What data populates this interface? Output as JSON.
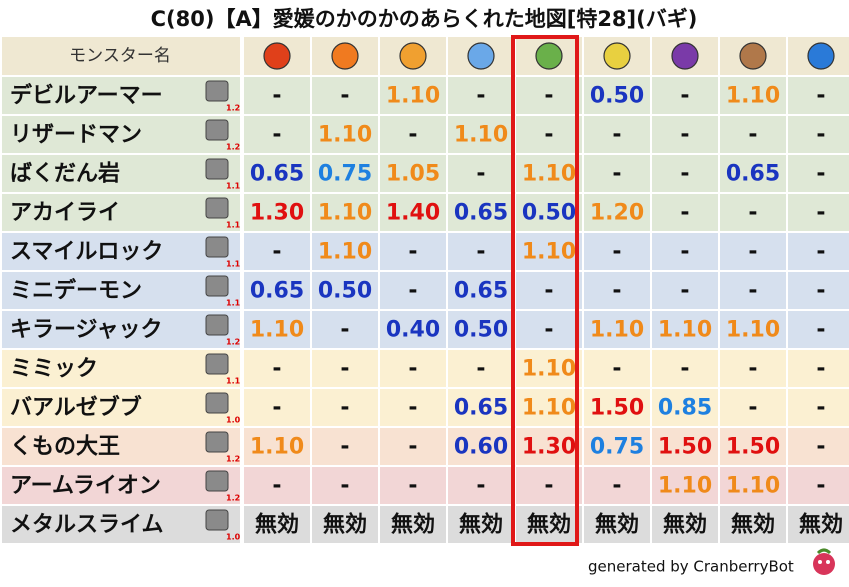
{
  "title": "C(80)【A】愛媛のかのかのあらくれた地図[特28](バギ)",
  "table": {
    "header": "モンスター名",
    "rows": [
      {
        "name": "デビルアーマー",
        "level": "1.2",
        "values": [
          "-",
          "-",
          "1.10",
          "-",
          "-",
          "0.50",
          "-",
          "1.10",
          "-"
        ]
      },
      {
        "name": "リザードマン",
        "level": "1.2",
        "values": [
          "-",
          "1.10",
          "-",
          "1.10",
          "-",
          "-",
          "-",
          "-",
          "-"
        ]
      },
      {
        "name": "ばくだん岩",
        "level": "1.1",
        "values": [
          "0.65",
          "0.75",
          "1.05",
          "-",
          "1.10",
          "-",
          "-",
          "0.65",
          "-"
        ]
      },
      {
        "name": "アカイライ",
        "level": "1.1",
        "values": [
          "1.30",
          "1.10",
          "1.40",
          "0.65",
          "0.50",
          "1.20",
          "-",
          "-",
          "-"
        ]
      },
      {
        "name": "スマイルロック",
        "level": "1.1",
        "values": [
          "-",
          "1.10",
          "-",
          "-",
          "1.10",
          "-",
          "-",
          "-",
          "-"
        ]
      },
      {
        "name": "ミニデーモン",
        "level": "1.1",
        "values": [
          "0.65",
          "0.50",
          "-",
          "0.65",
          "-",
          "-",
          "-",
          "-",
          "-"
        ]
      },
      {
        "name": "キラージャック",
        "level": "1.2",
        "values": [
          "1.10",
          "-",
          "0.40",
          "0.50",
          "-",
          "1.10",
          "1.10",
          "1.10",
          "-"
        ]
      },
      {
        "name": "ミミック",
        "level": "1.1",
        "values": [
          "-",
          "-",
          "-",
          "-",
          "1.10",
          "-",
          "-",
          "-",
          "-"
        ]
      },
      {
        "name": "バアルゼブブ",
        "level": "1.0",
        "values": [
          "-",
          "-",
          "-",
          "0.65",
          "1.10",
          "1.50",
          "0.85",
          "-",
          "-"
        ]
      },
      {
        "name": "くもの大王",
        "level": "1.2",
        "values": [
          "1.10",
          "-",
          "-",
          "0.60",
          "1.30",
          "0.75",
          "1.50",
          "1.50",
          "-"
        ]
      },
      {
        "name": "アームライオン",
        "level": "1.2",
        "values": [
          "-",
          "-",
          "-",
          "-",
          "-",
          "-",
          "1.10",
          "1.10",
          "-"
        ]
      },
      {
        "name": "メタルスライム",
        "level": "1.0",
        "values": [
          "無効",
          "無効",
          "無効",
          "無効",
          "無効",
          "無効",
          "無効",
          "無効",
          "無効"
        ]
      }
    ]
  },
  "footer": "generated by CranberryBot"
}
